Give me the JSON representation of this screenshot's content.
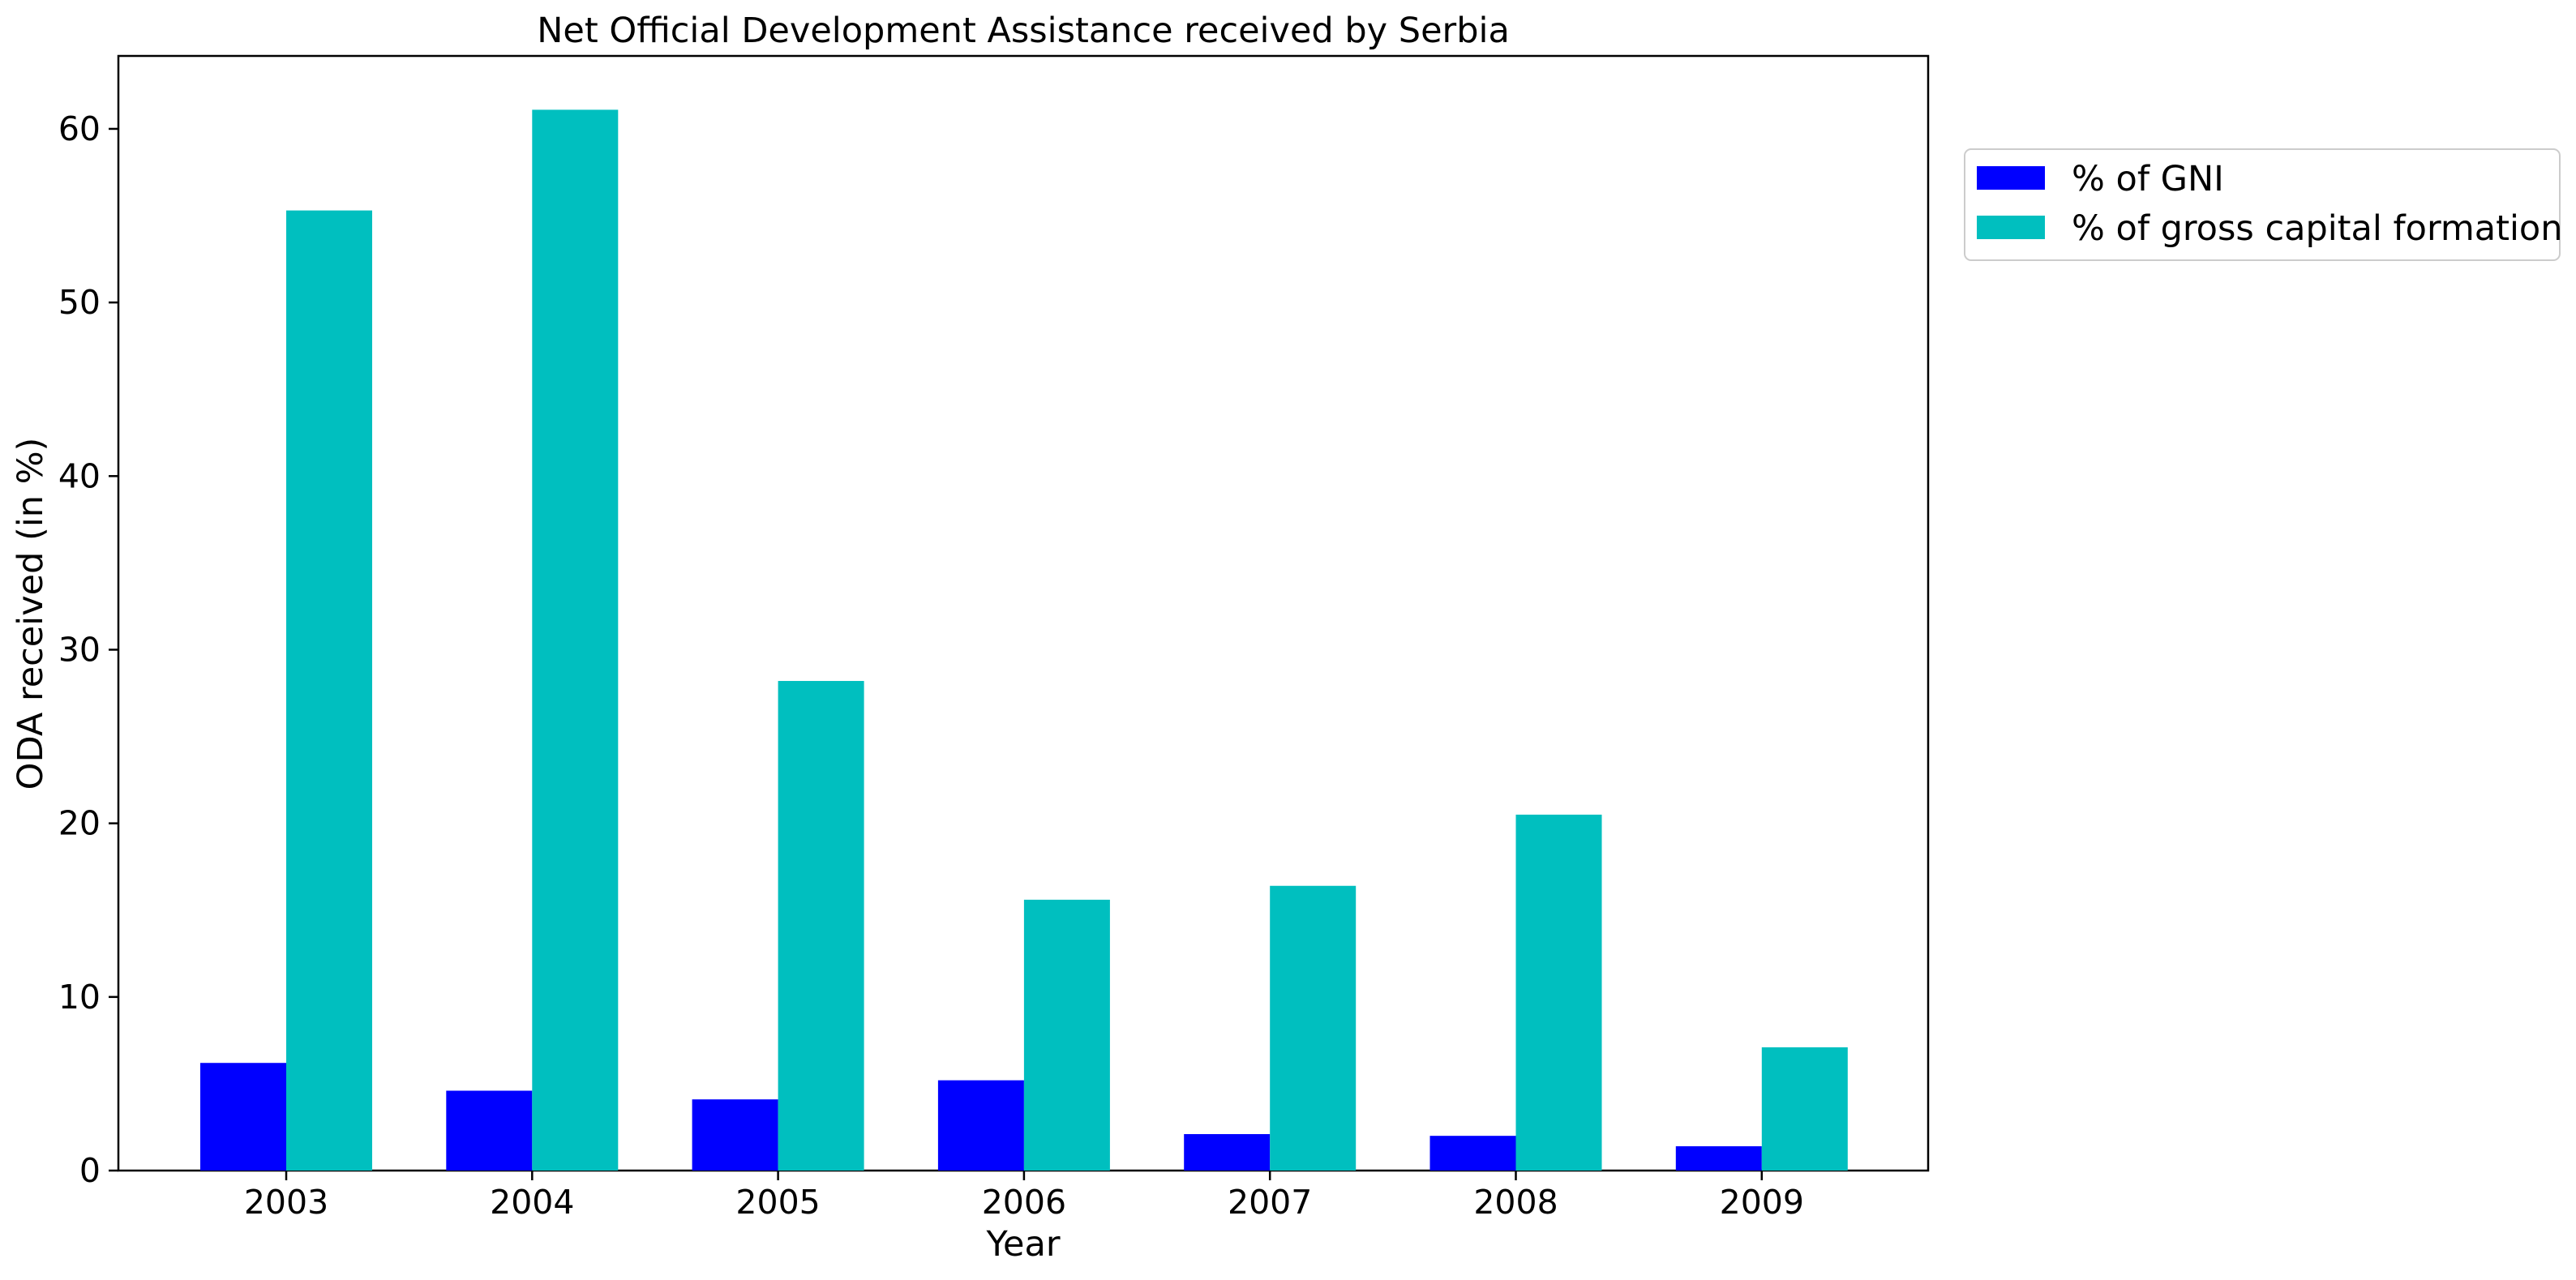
{
  "chart_data": {
    "type": "bar",
    "title": "Net Official Development Assistance received by Serbia",
    "xlabel": "Year",
    "ylabel": "ODA received (in %)",
    "categories": [
      "2003",
      "2004",
      "2005",
      "2006",
      "2007",
      "2008",
      "2009"
    ],
    "series": [
      {
        "name": "% of GNI",
        "color": "#0000ff",
        "values": [
          6.2,
          4.6,
          4.1,
          5.2,
          2.1,
          2.0,
          1.4
        ]
      },
      {
        "name": "% of gross capital formation",
        "color": "#00bfbf",
        "values": [
          55.3,
          61.1,
          28.2,
          15.6,
          16.4,
          20.5,
          7.1
        ]
      }
    ],
    "ylim": [
      0,
      64.2
    ],
    "yticks": [
      0,
      10,
      20,
      30,
      40,
      50,
      60
    ],
    "grid": false,
    "legend_position": "outside-right-top"
  }
}
